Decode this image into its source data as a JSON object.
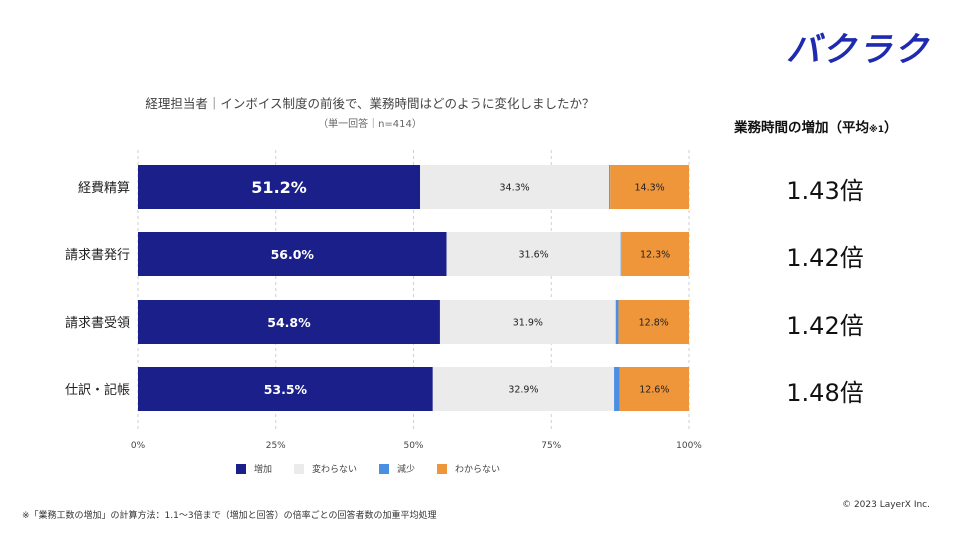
{
  "brand": {
    "logo_text": "バクラク"
  },
  "header": {
    "title": "経理担当者｜インボイス制度の前後で、業務時間はどのように変化しましたか？",
    "subtitle": "（単一回答｜n=414）"
  },
  "right_panel": {
    "title_main": "業務時間の増加（平均",
    "title_note": "※1",
    "title_close": "）",
    "multipliers": [
      "1.43倍",
      "1.42倍",
      "1.42倍",
      "1.48倍"
    ]
  },
  "chart_data": {
    "type": "bar",
    "orientation": "horizontal",
    "stacked": true,
    "percent": true,
    "categories": [
      "経費精算",
      "請求書発行",
      "請求書受領",
      "仕訳・記帳"
    ],
    "series": [
      {
        "name": "増加",
        "color": "#1a1f8a",
        "values": [
          51.2,
          56.0,
          54.8,
          53.5
        ],
        "labels": [
          "51.2%",
          "56.0%",
          "54.8%",
          "53.5%"
        ]
      },
      {
        "name": "変わらない",
        "color": "#ebebeb",
        "values": [
          34.3,
          31.6,
          31.9,
          32.9
        ],
        "labels": [
          "34.3%",
          "31.6%",
          "31.9%",
          "32.9%"
        ]
      },
      {
        "name": "減少",
        "color": "#4a90e2",
        "values": [
          0.2,
          0.1,
          0.5,
          1.0
        ],
        "labels": [
          "",
          "",
          "",
          ""
        ]
      },
      {
        "name": "わからない",
        "color": "#f0963a",
        "values": [
          14.3,
          12.3,
          12.8,
          12.6
        ],
        "labels": [
          "14.3%",
          "12.3%",
          "12.8%",
          "12.6%"
        ]
      }
    ],
    "xlim": [
      0,
      100
    ],
    "ticks": [
      "0%",
      "25%",
      "50%",
      "75%",
      "100%"
    ],
    "tick_values": [
      0,
      25,
      50,
      75,
      100
    ],
    "legend": "bottom"
  },
  "footer": {
    "footnote": "※「業務工数の増加」の計算方法：1.1～3倍まで（増加と回答）の倍率ごとの回答者数の加重平均処理",
    "copyright": "© 2023 LayerX Inc."
  }
}
